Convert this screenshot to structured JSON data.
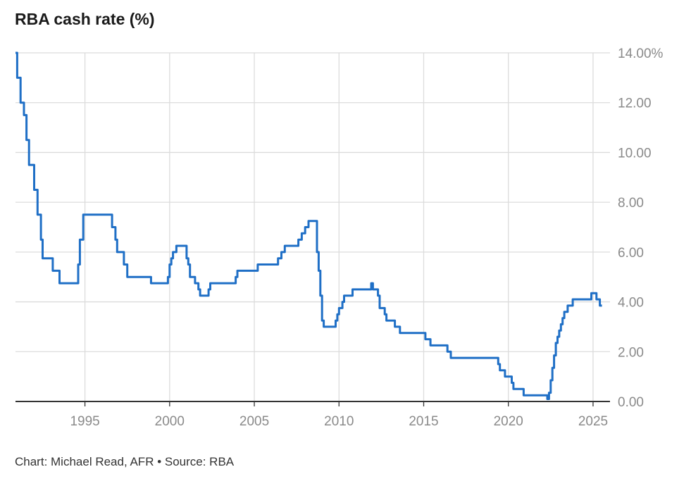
{
  "title": "RBA cash rate (%)",
  "footer": "Chart: Michael Read, AFR • Source: RBA",
  "colors": {
    "line": "#1f6fc6",
    "grid": "#dcdcdc",
    "axis": "#333333",
    "tick_text": "#8a8a8a"
  },
  "chart_data": {
    "type": "line",
    "title": "RBA cash rate (%)",
    "xlabel": "",
    "ylabel": "",
    "xlim": [
      1990.9,
      2026.0
    ],
    "ylim": [
      0,
      14
    ],
    "grid": true,
    "y_axis_side": "right",
    "step": true,
    "x_ticks": [
      1995,
      2000,
      2005,
      2010,
      2015,
      2020,
      2025
    ],
    "x_tick_labels": [
      "1995",
      "2000",
      "2005",
      "2010",
      "2015",
      "2020",
      "2025"
    ],
    "y_ticks": [
      0,
      2,
      4,
      6,
      8,
      10,
      12,
      14
    ],
    "y_tick_labels": [
      "0.00",
      "2.00",
      "4.00",
      "6.00",
      "8.00",
      "10.00",
      "12.00",
      "14.00%"
    ],
    "series": [
      {
        "x": [
          1990.9,
          1991.0,
          1991.2,
          1991.4,
          1991.55,
          1991.7,
          1992.0,
          1992.2,
          1992.4,
          1992.5,
          1993.1,
          1993.5,
          1994.6,
          1994.7,
          1994.9,
          1996.6,
          1996.8,
          1996.9,
          1997.3,
          1997.5,
          1997.6,
          1998.9,
          1999.9,
          2000.0,
          2000.1,
          2000.2,
          2000.4,
          2000.6,
          2001.0,
          2001.1,
          2001.2,
          2001.5,
          2001.7,
          2001.8,
          2002.3,
          2002.4,
          2003.9,
          2004.0,
          2005.2,
          2006.4,
          2006.6,
          2006.8,
          2007.6,
          2007.8,
          2008.0,
          2008.2,
          2008.7,
          2008.8,
          2008.9,
          2009.0,
          2009.1,
          2009.3,
          2009.8,
          2009.9,
          2010.0,
          2010.2,
          2010.3,
          2010.8,
          2011.9,
          2012.0,
          2012.3,
          2012.4,
          2012.7,
          2012.8,
          2013.3,
          2013.6,
          2015.1,
          2015.4,
          2016.4,
          2016.6,
          2019.4,
          2019.5,
          2019.8,
          2020.2,
          2020.3,
          2020.9,
          2022.3,
          2022.4,
          2022.5,
          2022.6,
          2022.7,
          2022.8,
          2022.9,
          2023.0,
          2023.1,
          2023.2,
          2023.3,
          2023.5,
          2023.8,
          2024.9,
          2025.2,
          2025.4
        ],
        "y": [
          14.0,
          13.0,
          12.0,
          11.5,
          10.5,
          9.5,
          8.5,
          7.5,
          6.5,
          5.75,
          5.25,
          4.75,
          5.5,
          6.5,
          7.5,
          7.0,
          6.5,
          6.0,
          5.5,
          5.0,
          5.0,
          4.75,
          5.0,
          5.5,
          5.75,
          6.0,
          6.25,
          6.25,
          5.75,
          5.5,
          5.0,
          4.75,
          4.5,
          4.25,
          4.5,
          4.75,
          5.0,
          5.25,
          5.5,
          5.75,
          6.0,
          6.25,
          6.5,
          6.75,
          7.0,
          7.25,
          6.0,
          5.25,
          4.25,
          3.25,
          3.0,
          3.0,
          3.25,
          3.5,
          3.75,
          4.0,
          4.25,
          4.5,
          4.75,
          4.5,
          4.25,
          3.75,
          3.5,
          3.25,
          3.0,
          2.75,
          2.5,
          2.25,
          2.0,
          1.75,
          1.5,
          1.25,
          1.0,
          0.75,
          0.5,
          0.25,
          0.1,
          0.35,
          0.85,
          1.35,
          1.85,
          2.35,
          2.6,
          2.85,
          3.1,
          3.35,
          3.6,
          3.85,
          4.1,
          4.35,
          4.1,
          3.85
        ]
      }
    ]
  }
}
